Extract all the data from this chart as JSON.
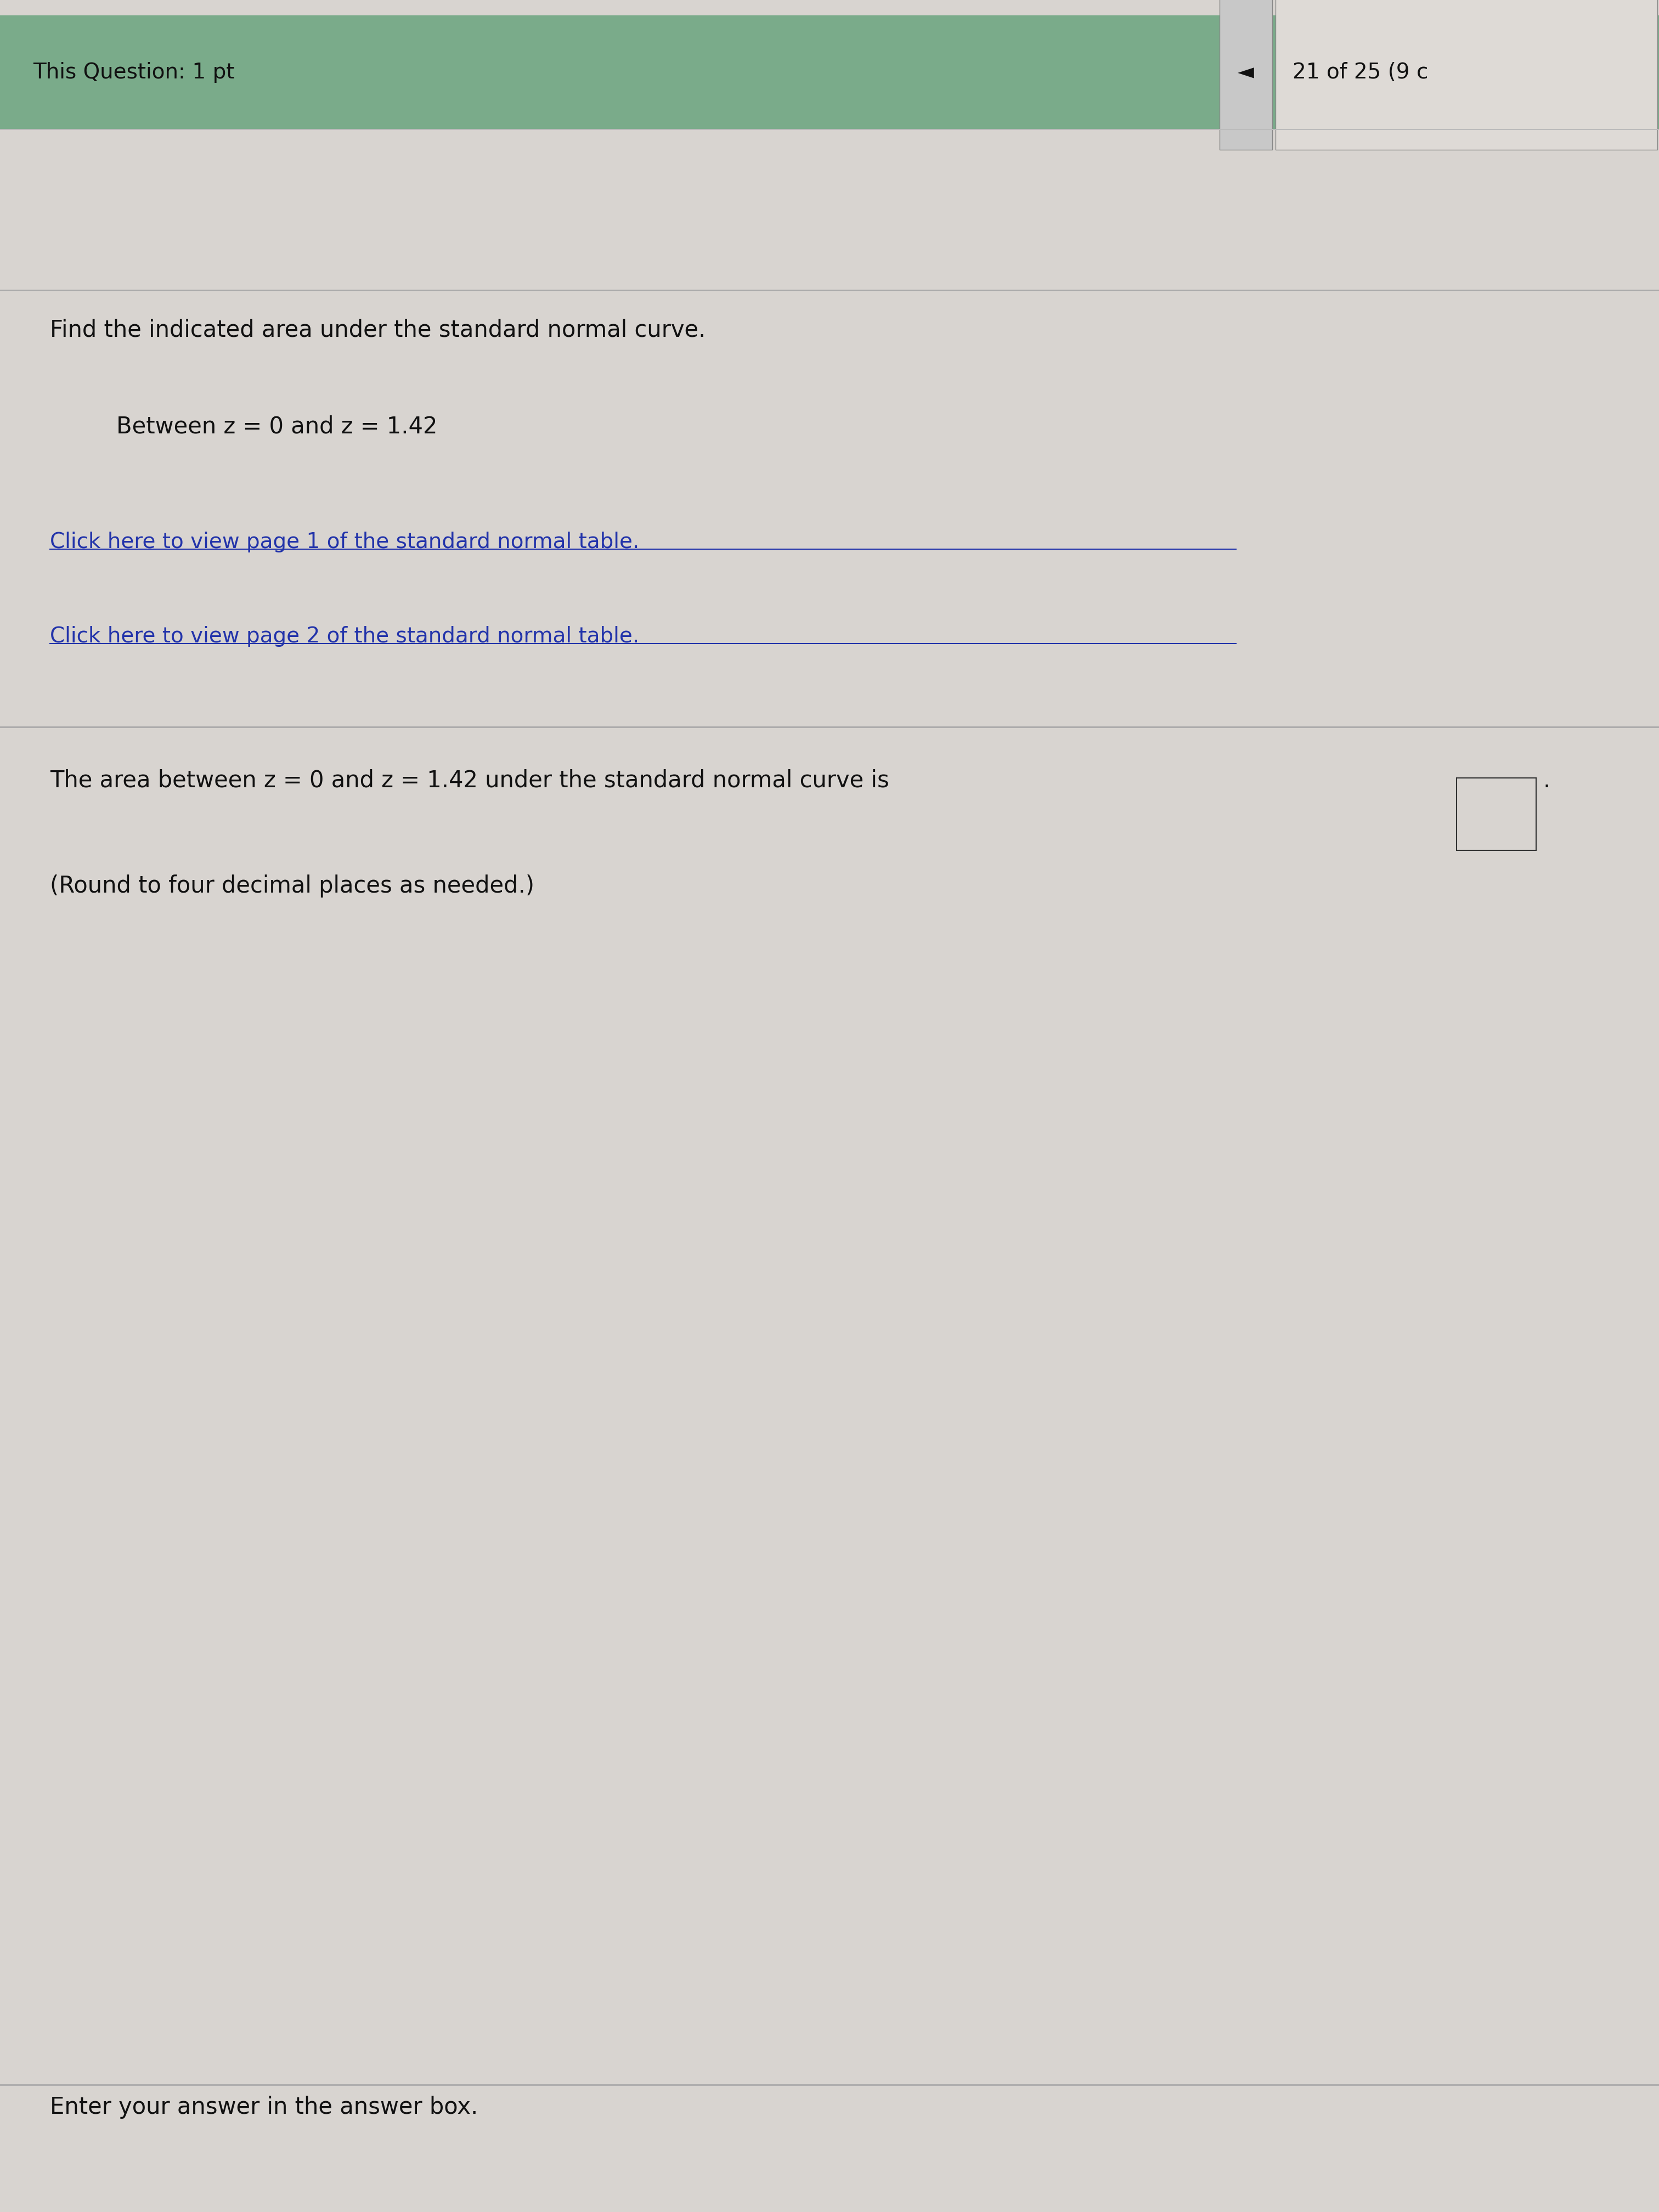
{
  "header_text": "This Question: 1 pt",
  "header_right_text": "21 of 25 (9 c",
  "header_bg_color": "#7aab8a",
  "header_arrow": "◄",
  "page_bg_color": "#d8d4d0",
  "main_text": "Find the indicated area under the standard normal curve.",
  "indent_text": "Between z = 0 and z = 1.42",
  "link1": "Click here to view page 1 of the standard normal table.",
  "link2": "Click here to view page 2 of the standard normal table.",
  "link_color": "#2233aa",
  "divider_color": "#aaaaaa",
  "answer_text_prefix": "The area between z = 0 and z = 1.42 under the standard normal curve is",
  "answer_text_suffix": ".",
  "round_text": "(Round to four decimal places as needed.)",
  "bottom_text": "Enter your answer in the answer box.",
  "text_color": "#111111",
  "font_size_header": 28,
  "font_size_main": 30,
  "font_size_link": 28,
  "font_size_answer": 30,
  "font_size_bottom": 30
}
